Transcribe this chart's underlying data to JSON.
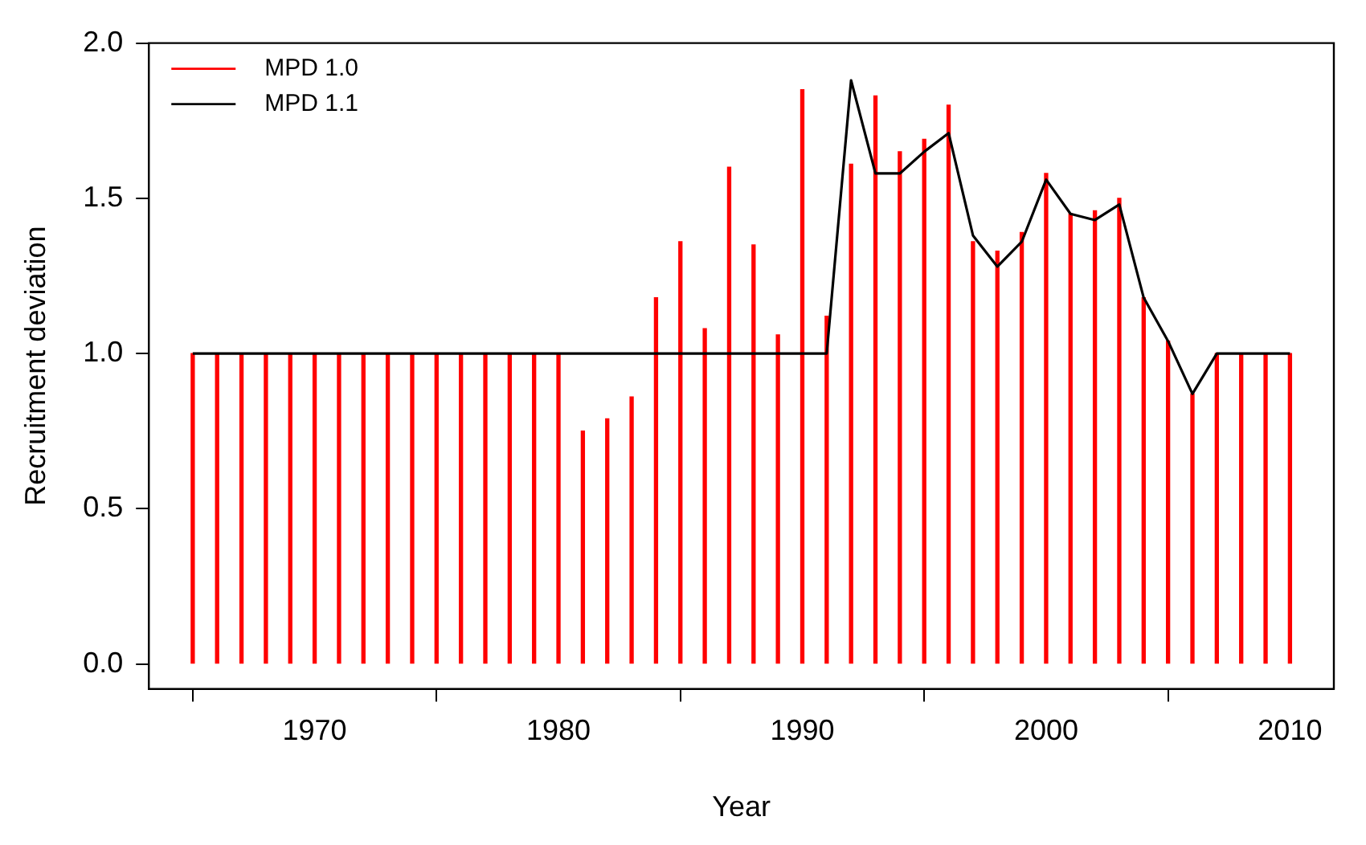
{
  "chart_data": {
    "type": "bar",
    "xlabel": "Year",
    "ylabel": "Recruitment deviation",
    "x": [
      1965,
      1966,
      1967,
      1968,
      1969,
      1970,
      1971,
      1972,
      1973,
      1974,
      1975,
      1976,
      1977,
      1978,
      1979,
      1980,
      1981,
      1982,
      1983,
      1984,
      1985,
      1986,
      1987,
      1988,
      1989,
      1990,
      1991,
      1992,
      1993,
      1994,
      1995,
      1996,
      1997,
      1998,
      1999,
      2000,
      2001,
      2002,
      2003,
      2004,
      2005,
      2006,
      2007,
      2008,
      2009,
      2010
    ],
    "series": [
      {
        "name": "MPD 1.0",
        "color": "#ff0000",
        "values": [
          1.0,
          1.0,
          1.0,
          1.0,
          1.0,
          1.0,
          1.0,
          1.0,
          1.0,
          1.0,
          1.0,
          1.0,
          1.0,
          1.0,
          1.0,
          1.0,
          0.75,
          0.79,
          0.86,
          1.18,
          1.36,
          1.08,
          1.6,
          1.35,
          1.06,
          1.85,
          1.12,
          1.61,
          1.83,
          1.65,
          1.69,
          1.8,
          1.36,
          1.33,
          1.39,
          1.58,
          1.45,
          1.46,
          1.5,
          1.18,
          1.04,
          0.87,
          1.0,
          1.0,
          1.0,
          1.0
        ]
      },
      {
        "name": "MPD 1.1",
        "type": "line",
        "color": "#000000",
        "values": [
          1.0,
          1.0,
          1.0,
          1.0,
          1.0,
          1.0,
          1.0,
          1.0,
          1.0,
          1.0,
          1.0,
          1.0,
          1.0,
          1.0,
          1.0,
          1.0,
          1.0,
          1.0,
          1.0,
          1.0,
          1.0,
          1.0,
          1.0,
          1.0,
          1.0,
          1.0,
          1.0,
          1.88,
          1.58,
          1.58,
          1.65,
          1.71,
          1.38,
          1.28,
          1.36,
          1.56,
          1.45,
          1.43,
          1.48,
          1.18,
          1.04,
          0.87,
          1.0,
          1.0,
          1.0,
          1.0
        ]
      }
    ],
    "xlim": [
      1963.2,
      2011.8
    ],
    "xticks": [
      1970,
      1980,
      1990,
      2000,
      2010
    ],
    "ylim": [
      -0.08,
      2.0
    ],
    "yticks": [
      {
        "value": 0,
        "label": "0.0"
      },
      0.5,
      {
        "value": 1,
        "label": "1.0"
      },
      1.5,
      {
        "value": 2,
        "label": "2.0"
      }
    ],
    "grid": false,
    "legend": "top left",
    "marker": "none",
    "line_style": "solid"
  }
}
